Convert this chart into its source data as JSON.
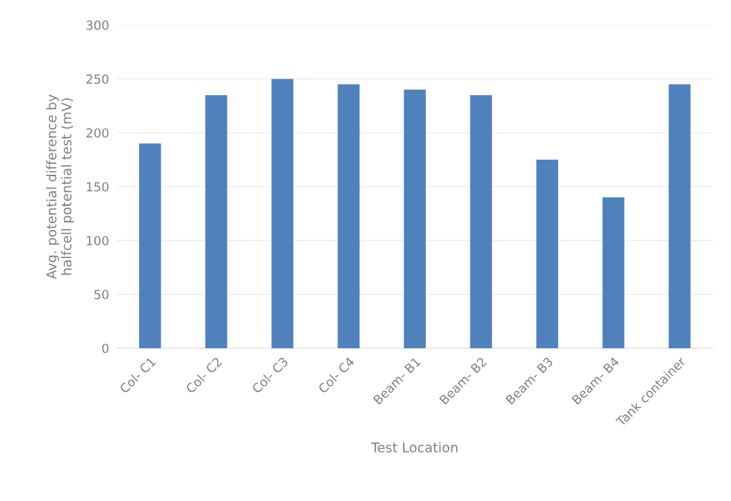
{
  "chart_data": {
    "type": "bar",
    "xlabel": "Test Location",
    "ylabel": "Avg. potential difference by\nhalfcell potential test (mV)",
    "categories": [
      "Col- C1",
      "Col- C2",
      "Col- C3",
      "Col- C4",
      "Beam- B1",
      "Beam- B2",
      "Beam- B3",
      "Beam- B4",
      "Tank container"
    ],
    "values": [
      190,
      235,
      250,
      245,
      240,
      235,
      175,
      140,
      245
    ],
    "color": "#4f81bd",
    "ylim": [
      0,
      300
    ],
    "yticks": [
      0,
      50,
      100,
      150,
      200,
      250,
      300
    ],
    "grid": "y"
  }
}
